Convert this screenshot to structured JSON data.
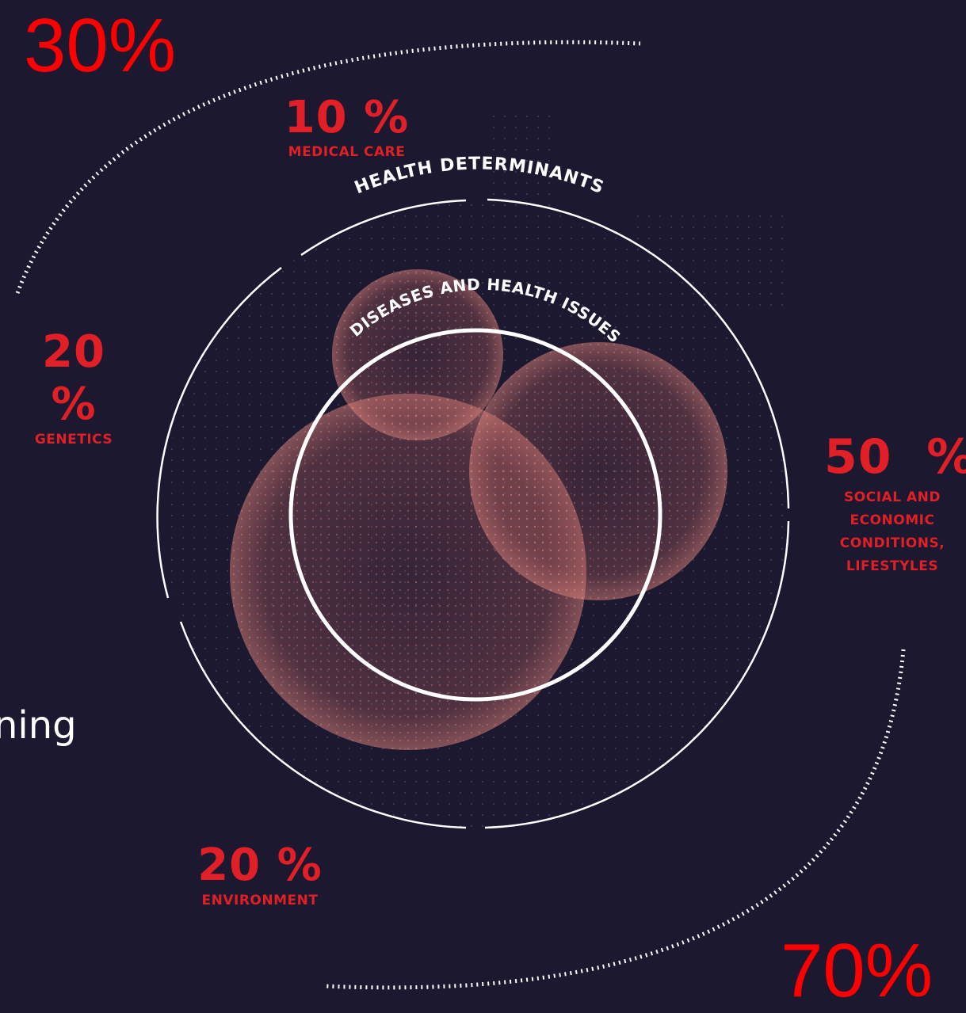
{
  "diagram": {
    "outer_ring_label": "HEALTH DETERMINANTS",
    "inner_ring_label": "DISEASES AND HEALTH ISSUES",
    "colors": {
      "background": "#1b1830",
      "accent_red": "#e11f26",
      "bright_red": "#ff0000",
      "ring": "#ffffff",
      "bubble": "#c96a66"
    }
  },
  "determinants": [
    {
      "id": "medical-care",
      "percent": "10 %",
      "label": "MEDICAL CARE"
    },
    {
      "id": "genetics",
      "percent": "20 %",
      "label": "GENETICS"
    },
    {
      "id": "social",
      "percent": "50  %",
      "label_lines": [
        "SOCIAL AND",
        "ECONOMIC",
        "CONDITIONS,",
        "LIFESTYLES"
      ]
    },
    {
      "id": "environment",
      "percent": "20 %",
      "label": "ENVIRONMENT"
    }
  ],
  "totals": {
    "top_left": "30%",
    "bottom_right": "70%"
  },
  "cut_off_text": "ning"
}
